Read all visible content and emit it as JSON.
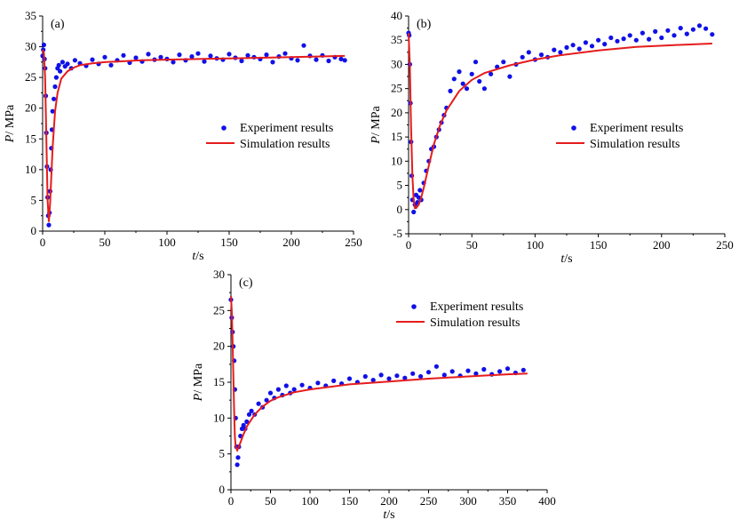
{
  "colors": {
    "experiment": "#1010e8",
    "simulation": "#e51c1c"
  },
  "chart_data": [
    {
      "type": "scatter",
      "panel_label": "(a)",
      "xlabel_italic": "t",
      "xlabel_unit": "/s",
      "ylabel_italic": "P",
      "ylabel_unit": "/ MPa",
      "xlim": [
        0,
        250
      ],
      "ylim": [
        0,
        35
      ],
      "xticks": [
        "0",
        "50",
        "100",
        "150",
        "200",
        "250"
      ],
      "yticks": [
        "0",
        "5",
        "10",
        "15",
        "20",
        "25",
        "30",
        "35"
      ],
      "legend": [
        "Experiment results",
        "Simulation results"
      ],
      "legend_position": "center-right",
      "series": [
        {
          "name": "Experiment results",
          "style": "points",
          "x": [
            0,
            0.5,
            1,
            1.5,
            2,
            2.5,
            3,
            3.5,
            4,
            4.5,
            5,
            5.5,
            6,
            6.5,
            7,
            7.5,
            8,
            9,
            10,
            11,
            12,
            13,
            14,
            16,
            18,
            20,
            23,
            26,
            30,
            35,
            40,
            45,
            50,
            55,
            60,
            65,
            70,
            75,
            80,
            85,
            90,
            95,
            100,
            105,
            110,
            115,
            120,
            125,
            130,
            135,
            140,
            145,
            150,
            155,
            160,
            165,
            170,
            175,
            180,
            185,
            190,
            195,
            200,
            205,
            210,
            215,
            220,
            225,
            230,
            235,
            240,
            243
          ],
          "y": [
            28.5,
            29.5,
            30.3,
            28.0,
            26.5,
            22.0,
            16.0,
            10.5,
            5.5,
            2.5,
            1.0,
            3.0,
            6.5,
            10.0,
            13.5,
            16.5,
            19.5,
            21.5,
            23.5,
            25.0,
            26.5,
            27.0,
            26.0,
            27.5,
            26.8,
            27.2,
            26.5,
            27.8,
            27.3,
            26.9,
            27.9,
            27.2,
            28.3,
            27.0,
            27.8,
            28.6,
            27.4,
            28.2,
            27.6,
            28.8,
            27.9,
            28.3,
            28.0,
            27.5,
            28.7,
            27.8,
            28.4,
            28.9,
            27.6,
            28.5,
            28.1,
            27.9,
            28.8,
            28.2,
            27.7,
            28.6,
            28.3,
            28.0,
            28.7,
            27.5,
            28.4,
            28.9,
            28.1,
            27.8,
            30.2,
            28.5,
            27.9,
            28.6,
            27.7,
            28.3,
            28.0,
            27.8
          ]
        },
        {
          "name": "Simulation results",
          "style": "line",
          "x": [
            0,
            1,
            2,
            3,
            4,
            5,
            6,
            7,
            8,
            10,
            12,
            15,
            20,
            25,
            30,
            40,
            50,
            60,
            80,
            100,
            125,
            150,
            175,
            200,
            220,
            243
          ],
          "y": [
            29.5,
            29.0,
            25.0,
            15.0,
            5.0,
            1.5,
            4.5,
            9.0,
            13.5,
            19.5,
            22.5,
            24.8,
            26.0,
            26.6,
            27.0,
            27.3,
            27.5,
            27.6,
            27.8,
            27.9,
            28.0,
            28.1,
            28.2,
            28.3,
            28.4,
            28.5
          ]
        }
      ]
    },
    {
      "type": "scatter",
      "panel_label": "(b)",
      "xlabel_italic": "t",
      "xlabel_unit": "/s",
      "ylabel_italic": "P",
      "ylabel_unit": "/ MPa",
      "xlim": [
        0,
        250
      ],
      "ylim": [
        -5,
        40
      ],
      "xticks": [
        "0",
        "50",
        "100",
        "150",
        "200",
        "250"
      ],
      "yticks": [
        "-5",
        "0",
        "5",
        "10",
        "15",
        "20",
        "25",
        "30",
        "35",
        "40"
      ],
      "legend": [
        "Experiment results",
        "Simulation results"
      ],
      "legend_position": "center-right",
      "series": [
        {
          "name": "Experiment results",
          "style": "points",
          "x": [
            0,
            0.5,
            1,
            1.5,
            2,
            2.5,
            3,
            4,
            5,
            6,
            7,
            8,
            9,
            10,
            12,
            14,
            16,
            18,
            20,
            22,
            24,
            26,
            28,
            30,
            33,
            36,
            40,
            43,
            46,
            50,
            53,
            56,
            60,
            65,
            70,
            75,
            80,
            85,
            90,
            95,
            100,
            105,
            110,
            115,
            120,
            125,
            130,
            135,
            140,
            145,
            150,
            155,
            160,
            165,
            170,
            175,
            180,
            185,
            190,
            195,
            200,
            205,
            210,
            215,
            220,
            225,
            230,
            235,
            240
          ],
          "y": [
            36.5,
            36.0,
            30.0,
            22.0,
            14.0,
            7.0,
            2.0,
            -0.5,
            1.0,
            3.0,
            1.5,
            2.5,
            4.0,
            2.0,
            5.5,
            8.0,
            10.0,
            12.5,
            13.0,
            15.0,
            16.5,
            18.0,
            19.5,
            21.0,
            24.5,
            27.0,
            28.5,
            26.0,
            25.0,
            28.0,
            30.5,
            26.5,
            25.0,
            28.0,
            29.5,
            30.5,
            27.5,
            30.0,
            31.5,
            32.5,
            31.0,
            32.0,
            31.5,
            33.0,
            32.5,
            33.5,
            34.0,
            33.2,
            34.5,
            33.8,
            35.0,
            34.2,
            35.5,
            34.8,
            35.3,
            36.0,
            35.0,
            36.5,
            35.2,
            36.8,
            35.5,
            37.0,
            36.0,
            37.5,
            36.3,
            37.2,
            38.0,
            37.4,
            36.2
          ]
        },
        {
          "name": "Simulation results",
          "style": "line",
          "x": [
            0,
            1,
            2,
            3,
            4,
            5,
            6,
            8,
            10,
            12,
            15,
            20,
            25,
            30,
            40,
            50,
            60,
            80,
            100,
            120,
            150,
            180,
            210,
            240
          ],
          "y": [
            36.5,
            30.0,
            17.0,
            7.0,
            2.0,
            0.3,
            0.3,
            1.0,
            2.5,
            4.5,
            8.0,
            13.5,
            17.5,
            20.5,
            24.5,
            26.8,
            28.2,
            29.8,
            31.0,
            31.9,
            32.9,
            33.6,
            34.0,
            34.3
          ]
        }
      ]
    },
    {
      "type": "scatter",
      "panel_label": "(c)",
      "xlabel_italic": "t",
      "xlabel_unit": "/s",
      "ylabel_italic": "P",
      "ylabel_unit": "/ MPa",
      "xlim": [
        0,
        400
      ],
      "ylim": [
        0,
        30
      ],
      "xticks": [
        "0",
        "50",
        "100",
        "150",
        "200",
        "250",
        "300",
        "350",
        "400"
      ],
      "yticks": [
        "0",
        "5",
        "10",
        "15",
        "20",
        "25",
        "30"
      ],
      "legend": [
        "Experiment results",
        "Simulation results"
      ],
      "legend_position": "top-right",
      "series": [
        {
          "name": "Experiment results",
          "style": "points",
          "x": [
            0,
            1,
            2,
            3,
            4,
            5,
            6,
            7,
            8,
            9,
            10,
            12,
            14,
            16,
            18,
            20,
            23,
            26,
            30,
            35,
            40,
            45,
            50,
            55,
            60,
            65,
            70,
            75,
            80,
            90,
            100,
            110,
            120,
            130,
            140,
            150,
            160,
            170,
            180,
            190,
            200,
            210,
            220,
            230,
            240,
            250,
            260,
            270,
            280,
            290,
            300,
            310,
            320,
            330,
            340,
            350,
            360,
            370
          ],
          "y": [
            26.5,
            24.0,
            22.0,
            20.0,
            18.0,
            14.0,
            10.0,
            6.0,
            3.5,
            4.5,
            6.0,
            7.5,
            8.5,
            9.0,
            8.5,
            9.5,
            10.5,
            11.0,
            10.5,
            12.0,
            11.5,
            12.5,
            13.5,
            12.8,
            14.0,
            13.2,
            14.5,
            13.5,
            14.0,
            14.6,
            14.2,
            14.9,
            14.5,
            15.2,
            14.8,
            15.5,
            15.0,
            15.8,
            15.3,
            16.0,
            15.5,
            15.9,
            15.6,
            16.2,
            15.8,
            16.4,
            17.2,
            16.0,
            16.5,
            15.9,
            16.6,
            16.2,
            16.8,
            16.1,
            16.5,
            16.9,
            16.3,
            16.7
          ]
        },
        {
          "name": "Simulation results",
          "style": "line",
          "x": [
            0,
            1,
            2,
            3,
            4,
            5,
            6,
            8,
            10,
            15,
            20,
            30,
            40,
            50,
            60,
            80,
            100,
            150,
            200,
            250,
            300,
            350,
            375
          ],
          "y": [
            27.0,
            25.0,
            21.0,
            16.0,
            11.0,
            7.5,
            6.0,
            5.5,
            6.0,
            7.5,
            8.8,
            10.5,
            11.6,
            12.4,
            12.9,
            13.6,
            14.0,
            14.7,
            15.1,
            15.5,
            15.8,
            16.1,
            16.2
          ]
        }
      ]
    }
  ]
}
